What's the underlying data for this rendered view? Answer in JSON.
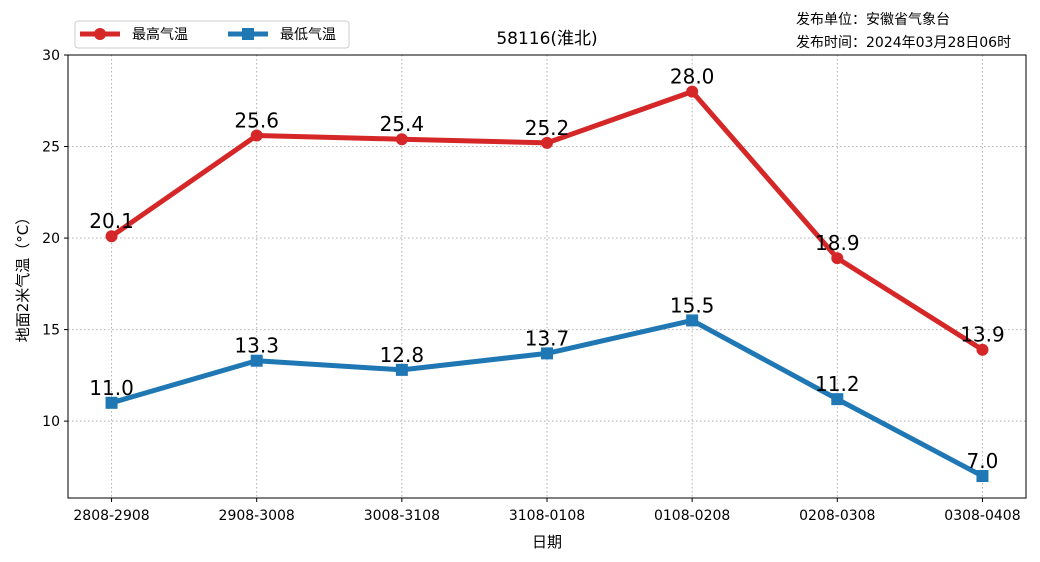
{
  "chart_data": {
    "type": "line",
    "title": "58116(淮北)",
    "publisher": "发布单位：安徽省气象台",
    "publish_time": "发布时间：2024年03月28日06时",
    "xlabel": "日期",
    "ylabel": "地面2米气温（°C）",
    "categories": [
      "2808-2908",
      "2908-3008",
      "3008-3108",
      "3108-0108",
      "0108-0208",
      "0208-0308",
      "0308-0408"
    ],
    "ylim": [
      5.8,
      30
    ],
    "yticks": [
      10,
      15,
      20,
      25,
      30
    ],
    "grid": true,
    "legend_position": "top-left",
    "series": [
      {
        "name": "最高气温",
        "color": "#d62728",
        "marker": "circle",
        "values": [
          20.1,
          25.6,
          25.4,
          25.2,
          28.0,
          18.9,
          13.9
        ]
      },
      {
        "name": "最低气温",
        "color": "#1f77b4",
        "marker": "square",
        "values": [
          11.0,
          13.3,
          12.8,
          13.7,
          15.5,
          11.2,
          7.0
        ]
      }
    ]
  }
}
